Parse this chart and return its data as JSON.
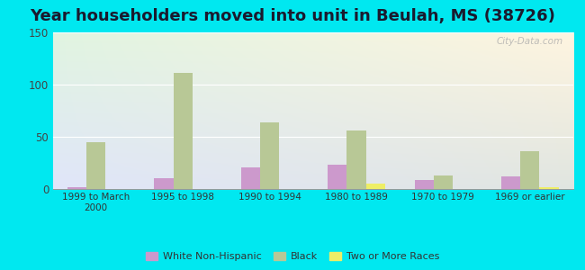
{
  "title": "Year householders moved into unit in Beulah, MS (38726)",
  "categories": [
    "1999 to March\n2000",
    "1995 to 1998",
    "1990 to 1994",
    "1980 to 1989",
    "1970 to 1979",
    "1969 or earlier"
  ],
  "series": {
    "White Non-Hispanic": [
      2,
      10,
      21,
      23,
      9,
      12
    ],
    "Black": [
      45,
      111,
      64,
      56,
      13,
      36
    ],
    "Two or More Races": [
      0,
      0,
      0,
      5,
      0,
      2
    ]
  },
  "colors": {
    "White Non-Hispanic": "#cc99cc",
    "Black": "#b8c896",
    "Two or More Races": "#eeee66"
  },
  "ylim": [
    0,
    150
  ],
  "yticks": [
    0,
    50,
    100,
    150
  ],
  "outer_background": "#00e8f0",
  "title_fontsize": 13,
  "bar_width": 0.22,
  "watermark": "City-Data.com"
}
